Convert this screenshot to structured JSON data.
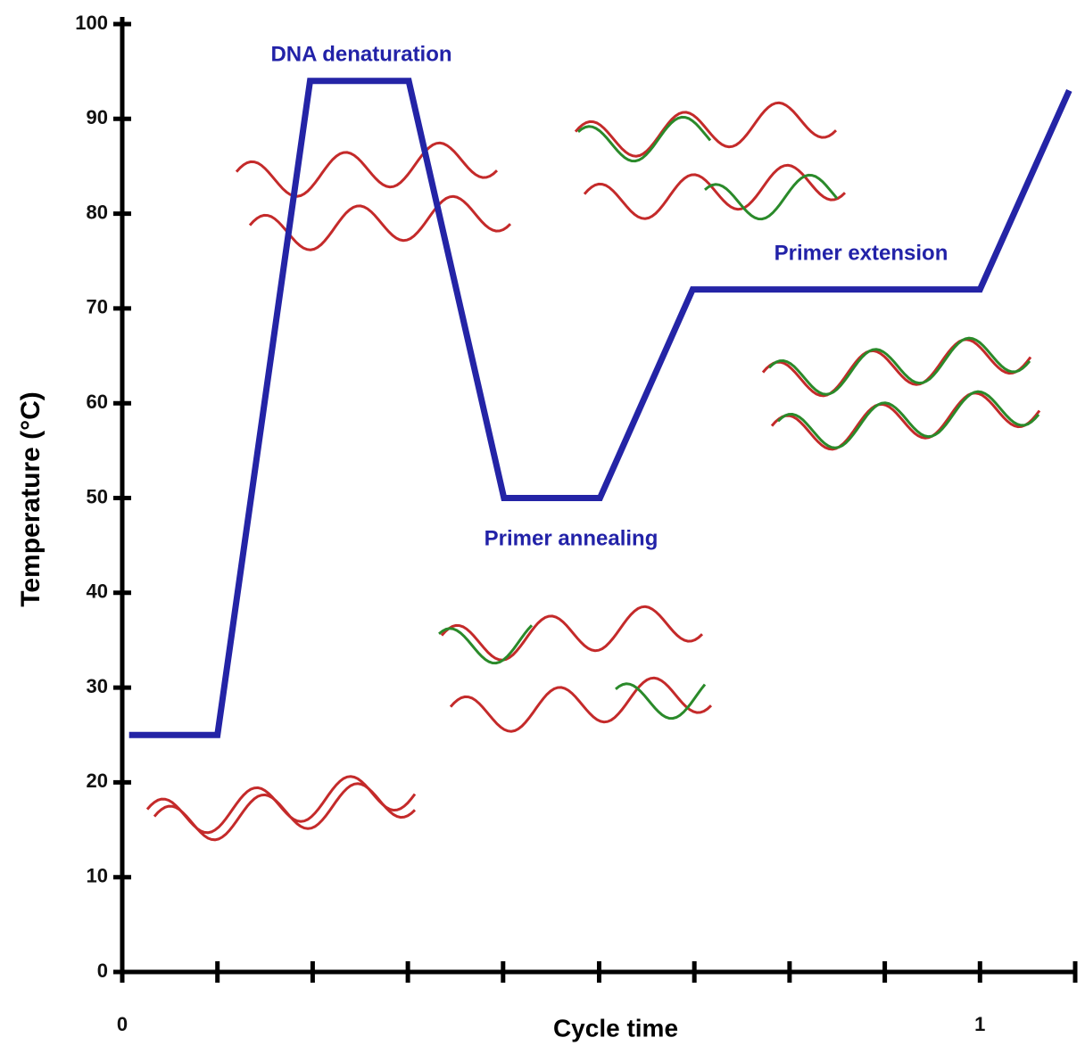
{
  "chart_data": {
    "type": "line",
    "ylabel": "Temperature (°C)",
    "xlabel": "Cycle time",
    "x": [
      0.008,
      0.111,
      0.219,
      0.334,
      0.445,
      0.557,
      0.665,
      1.0,
      1.104
    ],
    "series": [
      {
        "color": "#2424a6",
        "values": [
          25,
          25,
          94,
          94,
          50,
          50,
          72,
          72,
          93
        ]
      }
    ],
    "xlim": [
      0,
      1.111
    ],
    "ylim": [
      0,
      100
    ],
    "xticks": [
      0,
      1
    ],
    "xminorticks": [
      0.111,
      0.222,
      0.333,
      0.444,
      0.556,
      0.667,
      0.778,
      0.889,
      1.111
    ],
    "yticks": [
      0,
      10,
      20,
      30,
      40,
      50,
      60,
      70,
      80,
      90,
      100
    ],
    "annotations": [
      "DNA denaturation",
      "Primer annealing",
      "Primer extension"
    ]
  }
}
